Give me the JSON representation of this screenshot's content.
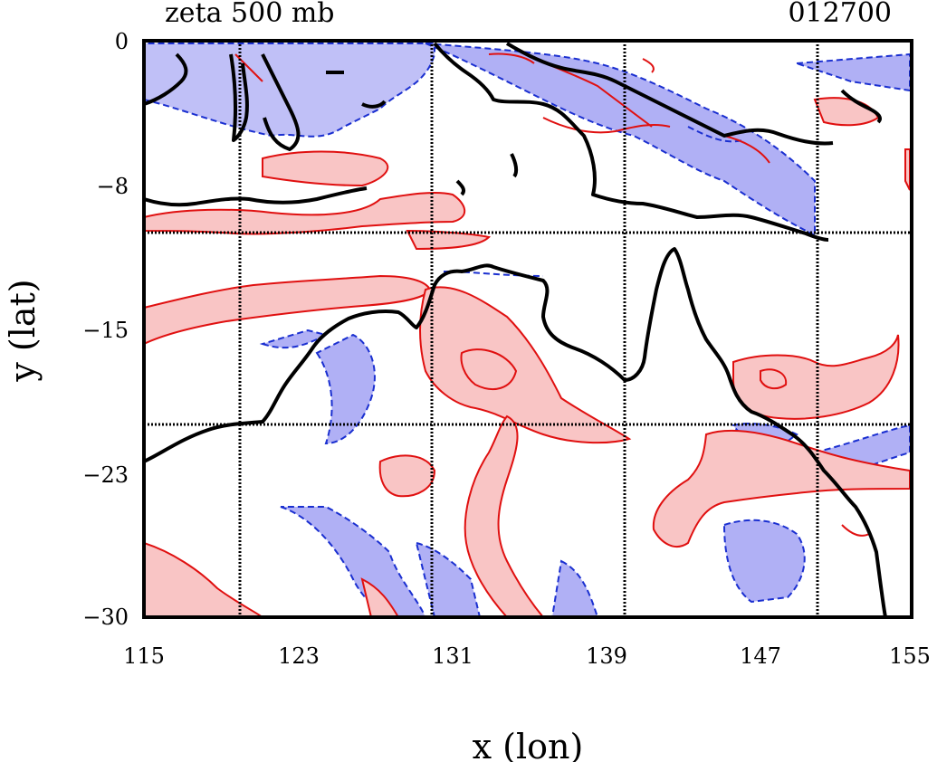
{
  "title": {
    "left": "zeta 500 mb",
    "right": "012700"
  },
  "axes": {
    "xlabel": "x (lon)",
    "ylabel": "y (lat)",
    "x_ticks": [
      "115",
      "123",
      "131",
      "139",
      "147",
      "155"
    ],
    "y_ticks": [
      "0",
      "−8",
      "−15",
      "−23",
      "−30"
    ],
    "x_range": [
      115,
      155
    ],
    "y_range": [
      -30,
      0
    ],
    "grid_lon": [
      120,
      130,
      140,
      150
    ],
    "grid_lat": [
      -10,
      -20
    ]
  },
  "legend": {
    "positive_color": "#e01010",
    "positive_fill": "#f9c5c5",
    "negative_color": "#1a2fd0",
    "negative_fill": "#b0b0f5",
    "coastline_color": "#000000"
  }
}
